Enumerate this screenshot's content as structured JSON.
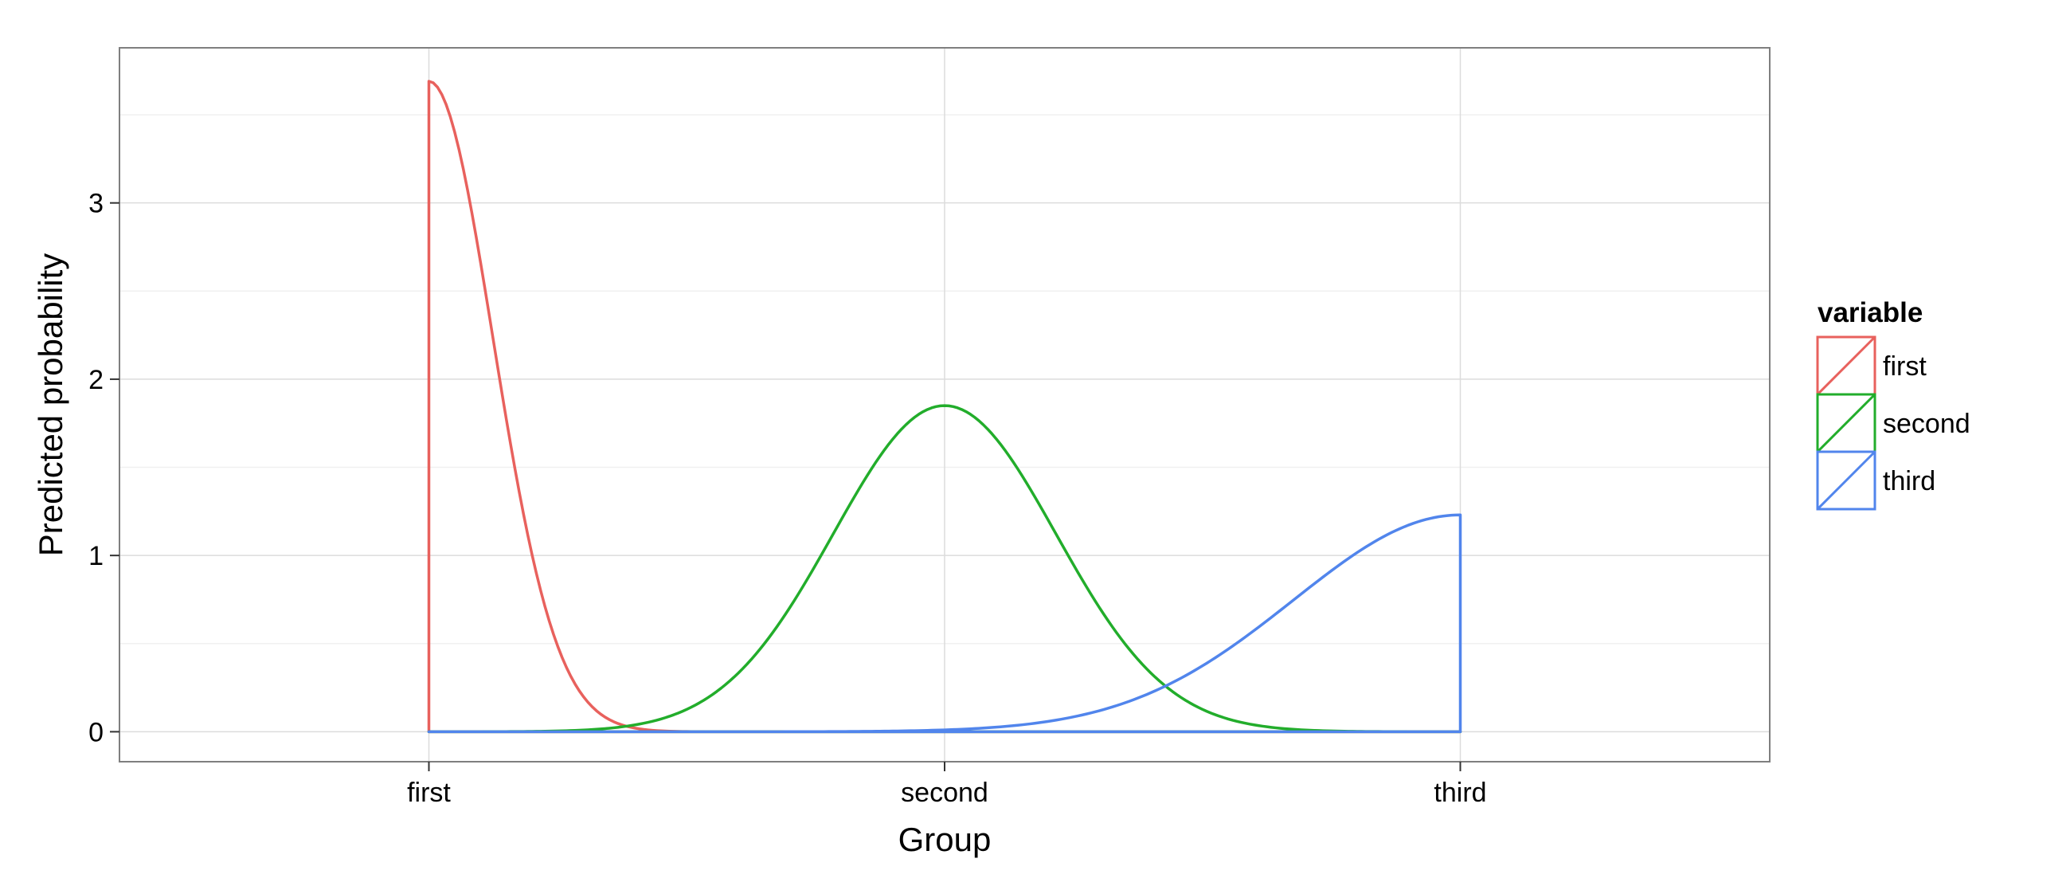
{
  "chart_data": {
    "type": "line",
    "title": "",
    "xlabel": "Group",
    "ylabel": "Predicted probability",
    "categories": [
      "first",
      "second",
      "third"
    ],
    "xlim": [
      0.4,
      3.6
    ],
    "ylim": [
      -0.17,
      3.88
    ],
    "yticks": [
      0,
      1,
      2,
      3
    ],
    "ytick_labels": [
      "0",
      "1",
      "2",
      "3"
    ],
    "grid": true,
    "legend": {
      "title": "variable",
      "position": "right",
      "entries": [
        "first",
        "second",
        "third"
      ]
    },
    "colors": {
      "first": "#E8615D",
      "second": "#22AD2B",
      "third": "#5185EC",
      "panel_border": "#7f7f7f",
      "grid_major": "#dcdcdc",
      "grid_minor": "#f0f0f0"
    },
    "series": [
      {
        "name": "first",
        "shape": "half-normal density starting at x=1, peak 3.69 at x=1, falling to ~0 by x=1.35, zero through x=3",
        "x": [
          1.0,
          1.05,
          1.1,
          1.15,
          1.2,
          1.25,
          1.3,
          1.35,
          1.5,
          2.0,
          3.0
        ],
        "y": [
          3.69,
          3.33,
          2.54,
          1.62,
          0.87,
          0.39,
          0.14,
          0.04,
          0.0,
          0.0,
          0.0
        ]
      },
      {
        "name": "second",
        "shape": "normal density centered at x=2, peak 1.85, ~0 at x=1 and x=3",
        "x": [
          1.0,
          1.2,
          1.4,
          1.6,
          1.8,
          2.0,
          2.2,
          2.4,
          2.6,
          2.8,
          3.0
        ],
        "y": [
          0.0,
          0.01,
          0.13,
          0.56,
          1.43,
          1.85,
          1.43,
          0.56,
          0.13,
          0.01,
          0.0
        ]
      },
      {
        "name": "third",
        "shape": "half-normal density rising toward x=3, peak 1.23 at x=3, then vertical drop to 0 at x=3",
        "x": [
          1.0,
          1.5,
          2.0,
          2.2,
          2.4,
          2.6,
          2.8,
          3.0
        ],
        "y": [
          0.0,
          0.0,
          0.02,
          0.06,
          0.17,
          0.41,
          0.8,
          1.23
        ]
      }
    ]
  }
}
